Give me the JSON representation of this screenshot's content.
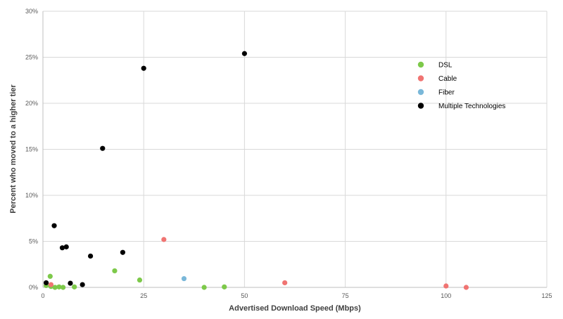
{
  "chart_data": {
    "type": "scatter",
    "xlabel": "Advertised Download Speed (Mbps)",
    "ylabel": "Percent who moved to a higher tier",
    "xlim": [
      0,
      125
    ],
    "ylim": [
      0,
      30
    ],
    "x_ticks": [
      0,
      25,
      50,
      75,
      100,
      125
    ],
    "y_ticks": [
      0,
      5,
      10,
      15,
      20,
      25,
      30
    ],
    "x_tick_labels": [
      "0",
      "25",
      "50",
      "75",
      "100",
      "125"
    ],
    "y_tick_labels": [
      "0%",
      "5%",
      "10%",
      "15%",
      "20%",
      "25%",
      "30%"
    ],
    "grid": true,
    "legend_position": "top-right",
    "series": [
      {
        "name": "DSL",
        "color": "#7dc94a",
        "points": [
          [
            0.8,
            0.2
          ],
          [
            1.8,
            1.2
          ],
          [
            2.0,
            0.1
          ],
          [
            3.0,
            0.0
          ],
          [
            4.0,
            0.05
          ],
          [
            5.0,
            0.0
          ],
          [
            7.8,
            0.05
          ],
          [
            17.8,
            1.8
          ],
          [
            24.0,
            0.8
          ],
          [
            40.0,
            0.0
          ],
          [
            45.0,
            0.05
          ]
        ]
      },
      {
        "name": "Cable",
        "color": "#f07472",
        "points": [
          [
            2.0,
            0.3
          ],
          [
            30.0,
            5.2
          ],
          [
            60.0,
            0.5
          ],
          [
            100.0,
            0.15
          ],
          [
            105.0,
            0.0
          ]
        ]
      },
      {
        "name": "Fiber",
        "color": "#7ab8d9",
        "points": [
          [
            35.0,
            0.95
          ]
        ]
      },
      {
        "name": "Multiple Technologies",
        "color": "#000000",
        "points": [
          [
            0.8,
            0.5
          ],
          [
            2.8,
            6.7
          ],
          [
            4.8,
            4.3
          ],
          [
            5.8,
            4.4
          ],
          [
            6.8,
            0.45
          ],
          [
            9.8,
            0.3
          ],
          [
            11.8,
            3.4
          ],
          [
            14.8,
            15.1
          ],
          [
            19.8,
            3.8
          ],
          [
            25.0,
            23.8
          ],
          [
            50.0,
            25.4
          ]
        ]
      }
    ]
  }
}
